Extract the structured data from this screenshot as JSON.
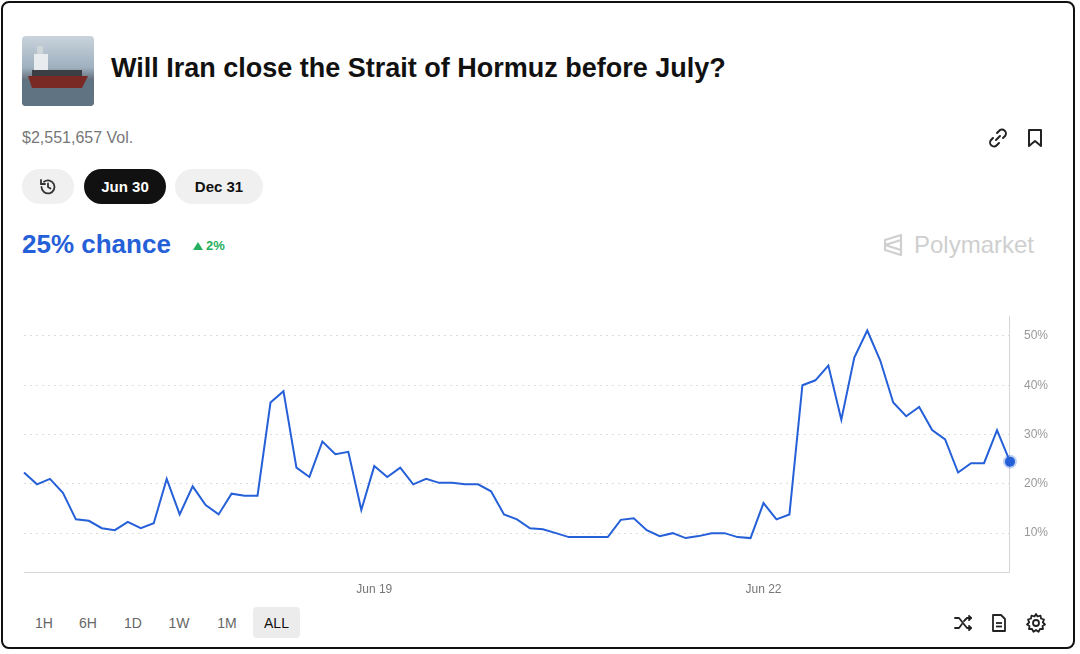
{
  "header": {
    "volume": "$2,551,657 Vol.",
    "tabs": [
      "Jun 30",
      "Dec 31"
    ],
    "active_tab": "Jun 30",
    "headline": "25% chance",
    "change": "2%",
    "brand": "Polymarket"
  },
  "chart_data": {
    "type": "line",
    "title": "Will Iran close the Strait of Hormuz before July?",
    "categories": [
      null,
      null,
      null,
      null,
      null,
      null,
      null,
      null,
      null,
      null,
      null,
      null,
      null,
      null,
      null,
      null,
      null,
      null,
      null,
      null,
      null,
      null,
      null,
      null,
      null,
      null,
      null,
      "Jun 19",
      null,
      null,
      null,
      null,
      null,
      null,
      null,
      null,
      null,
      null,
      null,
      null,
      null,
      null,
      null,
      null,
      null,
      null,
      null,
      null,
      null,
      null,
      null,
      null,
      null,
      null,
      null,
      null,
      null,
      "Jun 22",
      null,
      null,
      null,
      null,
      null,
      null,
      null,
      null,
      null,
      null,
      null,
      null,
      null,
      null,
      null,
      null,
      null,
      null,
      null
    ],
    "values": [
      22.3,
      19.9,
      21,
      18.2,
      12.8,
      12.5,
      11,
      10.6,
      12.3,
      11,
      12,
      21,
      13.8,
      19.5,
      15.7,
      13.8,
      18,
      17.6,
      17.6,
      36.5,
      38.8,
      23.3,
      21.4,
      28.6,
      26,
      26.5,
      14.7,
      23.6,
      21.4,
      23.3,
      19.9,
      21,
      20.2,
      20.2,
      19.9,
      19.9,
      18.5,
      13.8,
      12.8,
      11,
      10.8,
      10,
      9.2,
      9.2,
      9.2,
      9.2,
      12.7,
      13,
      10.6,
      9.4,
      10,
      9,
      9.4,
      10,
      10,
      9.2,
      9,
      16.1,
      12.8,
      13.8,
      40,
      41,
      44,
      33,
      45.6,
      51.1,
      45,
      36.5,
      33.7,
      35.6,
      30.9,
      29,
      22.3,
      24.2,
      24.2,
      30.9,
      24.5
    ],
    "color": "#2560d8",
    "ylim": [
      2,
      54
    ],
    "yticks": [
      {
        "value": 10,
        "label": "10%"
      },
      {
        "value": 20,
        "label": "20%"
      },
      {
        "value": 30,
        "label": "30%"
      },
      {
        "value": 40,
        "label": "40%"
      },
      {
        "value": 50,
        "label": "50%"
      }
    ],
    "grid": true
  },
  "footer": {
    "ranges": [
      "1H",
      "6H",
      "1D",
      "1W",
      "1M",
      "ALL"
    ],
    "active_range": "ALL"
  }
}
